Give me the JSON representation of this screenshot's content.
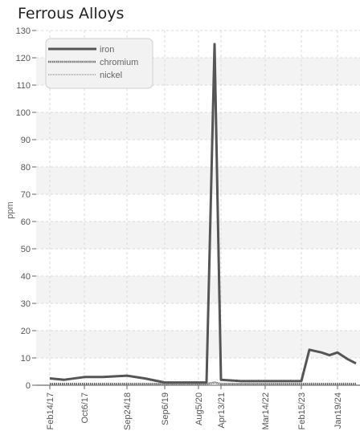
{
  "chart_data": {
    "type": "line",
    "title": "Ferrous Alloys",
    "ylabel": "ppm",
    "xlabel": "",
    "ylim": [
      0,
      130
    ],
    "yticks": [
      0,
      10,
      20,
      30,
      40,
      50,
      60,
      70,
      80,
      90,
      100,
      110,
      120,
      130
    ],
    "grid": true,
    "legend_position": "top-left",
    "x_tick_labels": [
      "Feb14/17",
      "Oct6/17",
      "Sep24/18",
      "Sep6/19",
      "Aug5/20",
      "Apr13/21",
      "Mar14/22",
      "Feb15/23",
      "Jan19/24"
    ],
    "x": [
      "Feb14/17",
      "Jun/17",
      "Oct6/17",
      "Mar/18",
      "Sep24/18",
      "Feb/19",
      "Sep6/19",
      "Mar/20",
      "Aug5/20",
      "Oct/20",
      "Dec/20",
      "Apr13/21",
      "Oct/21",
      "Mar14/22",
      "Sep/22",
      "Feb15/23",
      "Mar/23",
      "Jul/23",
      "Sep/23",
      "Jan19/24",
      "Mar/24",
      "Apr/24"
    ],
    "series": [
      {
        "name": "iron",
        "color": "#555555",
        "values": [
          2.5,
          2,
          3,
          3,
          3.5,
          2.5,
          1,
          1,
          1,
          1,
          125,
          2,
          1.5,
          1.5,
          1.5,
          1.5,
          13,
          12,
          11,
          12,
          9.5,
          8
        ]
      },
      {
        "name": "chromium",
        "color": "#666666",
        "values": [
          0.5,
          0.5,
          0.5,
          0.5,
          0.5,
          0.5,
          0.5,
          0.5,
          0.5,
          0.5,
          1,
          0.5,
          0.5,
          0.5,
          0.5,
          0.5,
          0.5,
          0.5,
          0.5,
          0.5,
          0.5,
          0.5
        ]
      },
      {
        "name": "nickel",
        "color": "#888888",
        "values": [
          0,
          0,
          0,
          0,
          0,
          0,
          0,
          0,
          0,
          0,
          0,
          0,
          0,
          0,
          0,
          0,
          0,
          0,
          0,
          0,
          0,
          0
        ]
      }
    ]
  }
}
